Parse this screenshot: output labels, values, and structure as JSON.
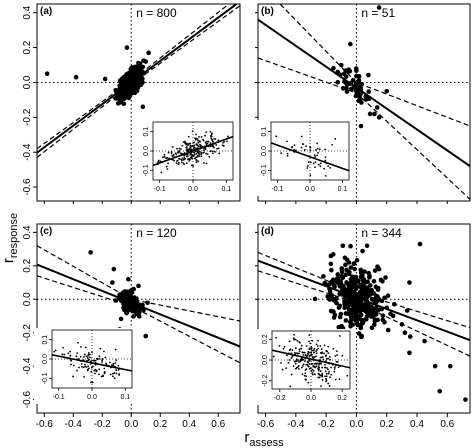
{
  "figure": {
    "ylabel": "r",
    "ylabel_sub": "response",
    "xlabel": "r",
    "xlabel_sub": "assess"
  },
  "chart_data": [
    {
      "type": "scatter",
      "panel_label": "(a)",
      "n_label": "n = 800",
      "n": 800,
      "xlim": [
        -0.65,
        0.75
      ],
      "ylim": [
        -0.68,
        0.45
      ],
      "xticks": [
        -0.6,
        -0.4,
        -0.2,
        0.0,
        0.2,
        0.4,
        0.6
      ],
      "yticks": [
        -0.6,
        -0.4,
        -0.2,
        0.0,
        0.2,
        0.4
      ],
      "fit_line": {
        "intercept": 0.0,
        "slope": 0.62
      },
      "ci_lower": [
        [
          -0.65,
          -0.43
        ],
        [
          0.0,
          -0.01
        ],
        [
          0.75,
          0.44
        ]
      ],
      "ci_upper": [
        [
          -0.65,
          -0.38
        ],
        [
          0.0,
          0.01
        ],
        [
          0.75,
          0.5
        ]
      ],
      "cloud": {
        "x_mean": -0.01,
        "x_sd": 0.035,
        "y_sd": 0.03,
        "slope": 0.62
      },
      "points": [
        [
          -0.58,
          0.05
        ],
        [
          -0.38,
          0.03
        ],
        [
          -0.18,
          0.02
        ],
        [
          0.12,
          0.17
        ],
        [
          0.08,
          -0.14
        ],
        [
          -0.09,
          -0.12
        ],
        [
          0.1,
          0.12
        ],
        [
          -0.03,
          0.2
        ]
      ],
      "inset": {
        "xlim": [
          -0.12,
          0.12
        ],
        "ylim": [
          -0.15,
          0.15
        ],
        "xticks": [
          -0.1,
          0.0,
          0.1
        ],
        "yticks": [
          -0.1,
          0.0,
          0.1
        ],
        "fit_line": {
          "intercept": 0.0,
          "slope": 0.62
        },
        "cloud": {
          "x_sd": 0.04,
          "y_sd": 0.035,
          "slope": 0.62
        }
      }
    },
    {
      "type": "scatter",
      "panel_label": "(b)",
      "n_label": "n = 51",
      "n": 51,
      "xlim": [
        -0.65,
        0.75
      ],
      "ylim": [
        -0.68,
        0.45
      ],
      "xticks": [
        -0.6,
        -0.4,
        -0.2,
        0.0,
        0.2,
        0.4,
        0.6
      ],
      "yticks": [
        -0.6,
        -0.4,
        -0.2,
        0.0,
        0.2,
        0.4
      ],
      "fit_line": {
        "intercept": -0.03,
        "slope": -0.6
      },
      "ci_lower": [
        [
          -0.65,
          0.14
        ],
        [
          0.0,
          -0.06
        ],
        [
          0.75,
          -0.67
        ]
      ],
      "ci_upper": [
        [
          -0.65,
          0.58
        ],
        [
          0.0,
          0.0
        ],
        [
          0.75,
          -0.25
        ]
      ],
      "cloud": {
        "x_mean": -0.02,
        "x_sd": 0.06,
        "y_sd": 0.05,
        "slope": -0.6
      },
      "points": [
        [
          0.15,
          0.43
        ],
        [
          -0.04,
          0.22
        ],
        [
          -0.08,
          0.05
        ],
        [
          0.09,
          -0.18
        ],
        [
          0.03,
          -0.25
        ],
        [
          0.15,
          -0.2
        ],
        [
          0.2,
          -0.05
        ],
        [
          -0.1,
          0.1
        ]
      ],
      "inset": {
        "xlim": [
          -0.12,
          0.12
        ],
        "ylim": [
          -0.15,
          0.15
        ],
        "xticks": [
          -0.1,
          0.0,
          0.1
        ],
        "yticks": [
          -0.1,
          0.0,
          0.1
        ],
        "fit_line": {
          "intercept": -0.03,
          "slope": -0.6
        },
        "cloud": {
          "x_sd": 0.05,
          "y_sd": 0.045,
          "slope": -0.6
        }
      }
    },
    {
      "type": "scatter",
      "panel_label": "(c)",
      "n_label": "n = 120",
      "n": 120,
      "xlim": [
        -0.65,
        0.75
      ],
      "ylim": [
        -0.68,
        0.45
      ],
      "xticks": [
        -0.6,
        -0.4,
        -0.2,
        0.0,
        0.2,
        0.4,
        0.6
      ],
      "yticks": [
        -0.6,
        -0.4,
        -0.2,
        0.0,
        0.2,
        0.4
      ],
      "fit_line": {
        "intercept": -0.02,
        "slope": -0.35
      },
      "ci_lower": [
        [
          -0.65,
          0.14
        ],
        [
          0.0,
          -0.04
        ],
        [
          0.75,
          -0.38
        ]
      ],
      "ci_upper": [
        [
          -0.65,
          0.32
        ],
        [
          0.0,
          0.0
        ],
        [
          0.75,
          -0.13
        ]
      ],
      "cloud": {
        "x_mean": -0.01,
        "x_sd": 0.04,
        "y_sd": 0.035,
        "slope": -0.35
      },
      "points": [
        [
          -0.28,
          0.28
        ],
        [
          -0.12,
          0.18
        ],
        [
          -0.13,
          0.1
        ],
        [
          -0.02,
          0.12
        ],
        [
          0.1,
          -0.22
        ],
        [
          -0.08,
          -0.18
        ],
        [
          0.05,
          0.08
        ]
      ],
      "inset": {
        "xlim": [
          -0.12,
          0.12
        ],
        "ylim": [
          -0.15,
          0.15
        ],
        "xticks": [
          -0.1,
          0.0,
          0.1
        ],
        "yticks": [
          -0.1,
          0.0,
          0.1
        ],
        "fit_line": {
          "intercept": -0.02,
          "slope": -0.35
        },
        "cloud": {
          "x_sd": 0.045,
          "y_sd": 0.04,
          "slope": -0.35
        }
      }
    },
    {
      "type": "scatter",
      "panel_label": "(d)",
      "n_label": "n = 344",
      "n": 344,
      "xlim": [
        -0.65,
        0.75
      ],
      "ylim": [
        -0.68,
        0.45
      ],
      "xticks": [
        -0.6,
        -0.4,
        -0.2,
        0.0,
        0.2,
        0.4,
        0.6
      ],
      "yticks": [
        -0.6,
        -0.4,
        -0.2,
        0.0,
        0.2,
        0.4
      ],
      "fit_line": {
        "intercept": 0.01,
        "slope": -0.34
      },
      "ci_lower": [
        [
          -0.65,
          0.17
        ],
        [
          0.0,
          -0.02
        ],
        [
          0.75,
          -0.34
        ]
      ],
      "ci_upper": [
        [
          -0.65,
          0.28
        ],
        [
          0.0,
          0.04
        ],
        [
          0.75,
          -0.17
        ]
      ],
      "cloud": {
        "x_mean": 0.0,
        "x_sd": 0.1,
        "y_sd": 0.1,
        "slope": -0.34
      },
      "points": [
        [
          -0.09,
          0.32
        ],
        [
          0.07,
          0.32
        ],
        [
          0.42,
          0.33
        ],
        [
          0.35,
          0.1
        ],
        [
          0.2,
          -0.05
        ],
        [
          0.3,
          -0.15
        ],
        [
          0.32,
          -0.2
        ],
        [
          0.35,
          -0.32
        ],
        [
          0.52,
          -0.4
        ],
        [
          0.62,
          -0.4
        ],
        [
          0.55,
          -0.55
        ],
        [
          0.72,
          -0.6
        ],
        [
          0.45,
          -0.25
        ],
        [
          -0.05,
          0.22
        ],
        [
          0.15,
          0.18
        ]
      ],
      "inset": {
        "xlim": [
          -0.25,
          0.25
        ],
        "ylim": [
          -0.28,
          0.28
        ],
        "xticks": [
          -0.2,
          0.0,
          0.2
        ],
        "yticks": [
          -0.2,
          0.0,
          0.2
        ],
        "fit_line": {
          "intercept": 0.01,
          "slope": -0.34
        },
        "cloud": {
          "x_sd": 0.09,
          "y_sd": 0.1,
          "slope": -0.34
        }
      }
    }
  ]
}
